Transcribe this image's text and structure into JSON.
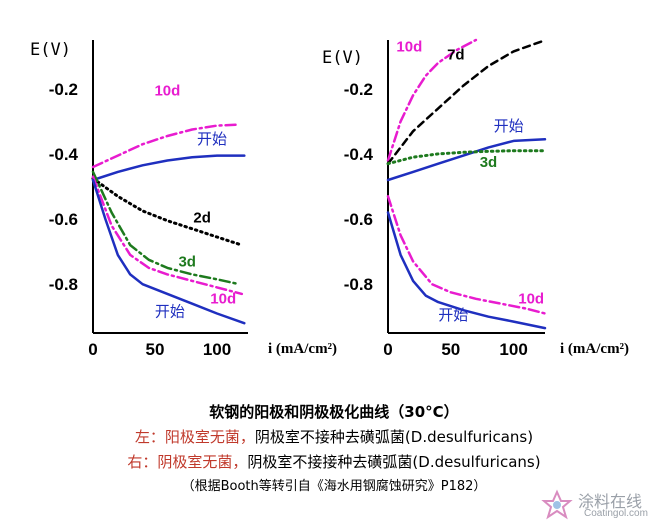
{
  "chart_data": [
    {
      "type": "line",
      "panel": "left",
      "ylabel": "E(V)",
      "xlabel": "i (mA/cm²)",
      "xlim": [
        0,
        125
      ],
      "ylim": [
        -0.95,
        -0.05
      ],
      "xticks": [
        "0",
        "50",
        "100"
      ],
      "yticks": [
        "-0.2",
        "-0.4",
        "-0.6",
        "-0.8"
      ],
      "series": [
        {
          "name": "开始",
          "branch": "anodic",
          "color": "#1f2fbf",
          "dash": "solid",
          "x": [
            0,
            20,
            40,
            60,
            80,
            100,
            122
          ],
          "y": [
            -0.48,
            -0.455,
            -0.435,
            -0.42,
            -0.41,
            -0.405,
            -0.405
          ]
        },
        {
          "name": "10d",
          "branch": "anodic",
          "color": "#e81ccf",
          "dash": "dashdot",
          "x": [
            0,
            20,
            40,
            60,
            80,
            100,
            118
          ],
          "y": [
            -0.44,
            -0.405,
            -0.37,
            -0.345,
            -0.325,
            -0.313,
            -0.31
          ]
        },
        {
          "name": "2d",
          "branch": "cathodic",
          "color": "#000000",
          "dash": "dot",
          "x": [
            0,
            20,
            40,
            60,
            80,
            100,
            120
          ],
          "y": [
            -0.475,
            -0.53,
            -0.575,
            -0.605,
            -0.63,
            -0.655,
            -0.68
          ]
        },
        {
          "name": "3d",
          "branch": "cathodic",
          "color": "#1e7a1e",
          "dash": "dashdot",
          "x": [
            0,
            15,
            30,
            45,
            60,
            80,
            100,
            118
          ],
          "y": [
            -0.455,
            -0.58,
            -0.68,
            -0.725,
            -0.75,
            -0.77,
            -0.785,
            -0.8
          ]
        },
        {
          "name": "10d",
          "branch": "cathodic",
          "color": "#e81ccf",
          "dash": "dashdot",
          "x": [
            0,
            15,
            30,
            45,
            60,
            80,
            100,
            120
          ],
          "y": [
            -0.47,
            -0.62,
            -0.71,
            -0.75,
            -0.77,
            -0.79,
            -0.81,
            -0.83
          ]
        },
        {
          "name": "开始",
          "branch": "cathodic",
          "color": "#1f2fbf",
          "dash": "solid",
          "x": [
            0,
            10,
            20,
            30,
            40,
            60,
            80,
            100,
            122
          ],
          "y": [
            -0.48,
            -0.6,
            -0.71,
            -0.77,
            -0.8,
            -0.83,
            -0.86,
            -0.89,
            -0.92
          ]
        }
      ],
      "labels": [
        {
          "text": "10d",
          "color": "#e81ccf",
          "x": 60,
          "y": -0.22
        },
        {
          "text": "开始",
          "color": "#1f2fbf",
          "x": 96,
          "y": -0.37
        },
        {
          "text": "2d",
          "color": "#000000",
          "x": 88,
          "y": -0.61
        },
        {
          "text": "3d",
          "color": "#1e7a1e",
          "x": 76,
          "y": -0.745
        },
        {
          "text": "10d",
          "color": "#e81ccf",
          "x": 105,
          "y": -0.86
        },
        {
          "text": "开始",
          "color": "#1f2fbf",
          "x": 62,
          "y": -0.9
        }
      ]
    },
    {
      "type": "line",
      "panel": "right",
      "ylabel": "E(V)",
      "xlabel": "i (mA/cm²)",
      "xlim": [
        0,
        125
      ],
      "ylim": [
        -0.95,
        -0.05
      ],
      "xticks": [
        "0",
        "50",
        "100"
      ],
      "yticks": [
        "-0.2",
        "-0.4",
        "-0.6",
        "-0.8"
      ],
      "series": [
        {
          "name": "10d",
          "branch": "anodic",
          "color": "#e81ccf",
          "dash": "dashdot",
          "x": [
            0,
            10,
            20,
            30,
            40,
            55,
            70
          ],
          "y": [
            -0.42,
            -0.3,
            -0.22,
            -0.16,
            -0.12,
            -0.08,
            -0.05
          ]
        },
        {
          "name": "7d",
          "branch": "anodic",
          "color": "#000000",
          "dash": "dash",
          "x": [
            0,
            20,
            40,
            60,
            80,
            100,
            122
          ],
          "y": [
            -0.43,
            -0.33,
            -0.26,
            -0.19,
            -0.13,
            -0.085,
            -0.055
          ]
        },
        {
          "name": "开始",
          "branch": "anodic",
          "color": "#1f2fbf",
          "dash": "solid",
          "x": [
            0,
            20,
            40,
            60,
            80,
            100,
            125
          ],
          "y": [
            -0.48,
            -0.455,
            -0.43,
            -0.405,
            -0.38,
            -0.36,
            -0.355
          ]
        },
        {
          "name": "3d",
          "branch": "anodic",
          "color": "#1e7a1e",
          "dash": "dot",
          "x": [
            0,
            20,
            40,
            60,
            80,
            100,
            125
          ],
          "y": [
            -0.43,
            -0.41,
            -0.4,
            -0.395,
            -0.392,
            -0.39,
            -0.39
          ]
        },
        {
          "name": "10d",
          "branch": "cathodic",
          "color": "#e81ccf",
          "dash": "dashdot",
          "x": [
            0,
            10,
            20,
            35,
            50,
            70,
            90,
            110,
            125
          ],
          "y": [
            -0.53,
            -0.65,
            -0.73,
            -0.8,
            -0.825,
            -0.845,
            -0.86,
            -0.875,
            -0.89
          ]
        },
        {
          "name": "开始",
          "branch": "cathodic",
          "color": "#1f2fbf",
          "dash": "solid",
          "x": [
            0,
            10,
            20,
            30,
            40,
            60,
            80,
            100,
            125
          ],
          "y": [
            -0.58,
            -0.71,
            -0.79,
            -0.835,
            -0.855,
            -0.88,
            -0.9,
            -0.915,
            -0.935
          ]
        }
      ],
      "labels": [
        {
          "text": "10d",
          "color": "#e81ccf",
          "x": 17,
          "y": -0.085
        },
        {
          "text": "7d",
          "color": "#000000",
          "x": 54,
          "y": -0.11
        },
        {
          "text": "开始",
          "color": "#1f2fbf",
          "x": 96,
          "y": -0.33
        },
        {
          "text": "3d",
          "color": "#1e7a1e",
          "x": 80,
          "y": -0.44
        },
        {
          "text": "10d",
          "color": "#e81ccf",
          "x": 114,
          "y": -0.86
        },
        {
          "text": "开始",
          "color": "#1f2fbf",
          "x": 52,
          "y": -0.91
        }
      ]
    }
  ],
  "caption": {
    "title": "软钢的阳极和阴极极化曲线（30°C）",
    "left_prefix": "左：阳极室无菌，",
    "left_rest": "阴极室不接种去磺弧菌(D.desulfuricans)",
    "right_prefix": "右：阴极室无菌，",
    "right_rest": "阴极室不接接种去磺弧菌(D.desulfuricans)",
    "source": "（根据Booth等转引自《海水用钢腐蚀研究》P182）"
  },
  "watermark": {
    "text": "涂料在线",
    "url": "Coatingol.com"
  },
  "colors": {
    "blue": "#1f2fbf",
    "magenta": "#e81ccf",
    "green": "#1e7a1e",
    "black": "#000000",
    "caption_red": "#c0392b"
  }
}
